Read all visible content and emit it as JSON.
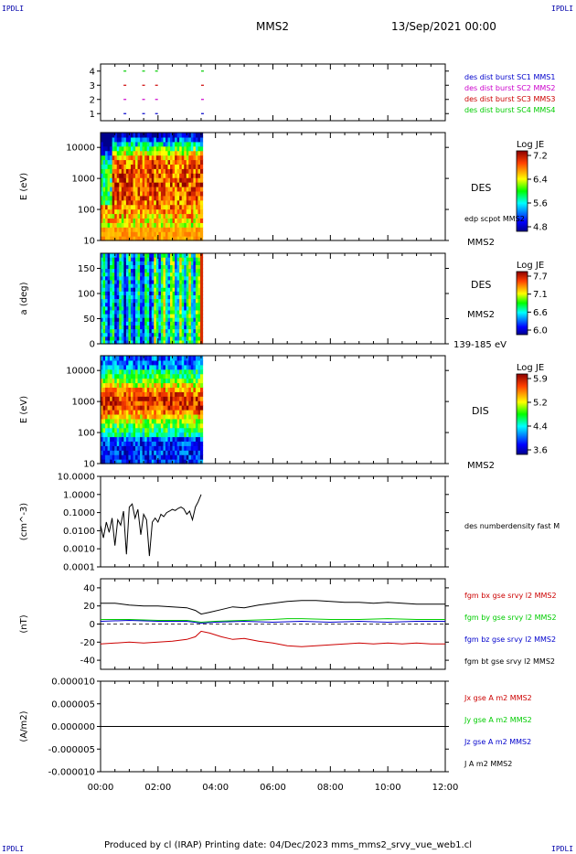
{
  "header": {
    "corner_label": "IPDLI",
    "spacecraft": "MMS2",
    "datetime": "13/Sep/2021 00:00"
  },
  "footer": {
    "text": "Produced by cl (IRAP)   Printing date: 04/Dec/2023   mms_mms2_srvy_vue_web1.cl"
  },
  "colors": {
    "blue": "#0000cc",
    "magenta": "#cc00cc",
    "red": "#cc0000",
    "green": "#00cc00",
    "black": "#000000"
  },
  "chart_data": [
    {
      "type": "scatter",
      "name": "burst-availability",
      "y_ticks": [
        "4",
        "3",
        "2",
        "1"
      ],
      "ylim": [
        0.5,
        4.5
      ],
      "legend": [
        {
          "label": "des dist burst SC1 MMS1",
          "color": "#0000cc"
        },
        {
          "label": "des dist burst SC2 MMS2",
          "color": "#cc00cc"
        },
        {
          "label": "des dist burst SC3 MMS3",
          "color": "#cc0000"
        },
        {
          "label": "des dist burst SC4 MMS4",
          "color": "#00cc00"
        }
      ],
      "burst_times_hours": [
        0.8,
        1.45,
        1.9,
        3.5
      ]
    },
    {
      "type": "heatmap",
      "name": "des-energy-spectrogram",
      "ylabel": "E (eV)",
      "y_scale": "log",
      "ylim": [
        10,
        30000
      ],
      "y_ticks": [
        "10000",
        "1000",
        "100",
        "10"
      ],
      "data_end_hours": 3.55,
      "right_labels": [
        "DES",
        "edp scpot MMS2",
        "MMS2"
      ],
      "colorbar": {
        "title": "Log JE",
        "ticks": [
          "7.2",
          "6.4",
          "5.6",
          "4.8"
        ],
        "range": [
          4.8,
          7.2
        ]
      }
    },
    {
      "type": "heatmap",
      "name": "des-pitch-angle",
      "ylabel": "a (deg)",
      "ylim": [
        0,
        180
      ],
      "y_ticks": [
        "150",
        "100",
        "50",
        "0"
      ],
      "data_end_hours": 3.55,
      "right_labels": [
        "DES",
        "MMS2",
        "139-185 eV"
      ],
      "colorbar": {
        "title": "Log JE",
        "ticks": [
          "7.7",
          "7.1",
          "6.6",
          "6.0"
        ],
        "range": [
          6.0,
          7.7
        ]
      }
    },
    {
      "type": "heatmap",
      "name": "dis-energy-spectrogram",
      "ylabel": "E (eV)",
      "y_scale": "log",
      "ylim": [
        10,
        30000
      ],
      "y_ticks": [
        "10000",
        "1000",
        "100",
        "10"
      ],
      "data_end_hours": 3.55,
      "right_labels": [
        "DIS",
        "MMS2"
      ],
      "colorbar": {
        "title": "Log JE",
        "ticks": [
          "5.9",
          "5.2",
          "4.4",
          "3.6"
        ],
        "range": [
          3.6,
          5.9
        ]
      }
    },
    {
      "type": "line",
      "name": "des-numberdensity",
      "ylabel": "(cm^-3)",
      "y_scale": "log",
      "ylim": [
        0.0001,
        10
      ],
      "y_ticks": [
        "10.0000",
        "1.0000",
        "0.1000",
        "0.0100",
        "0.0010",
        "0.0001"
      ],
      "series": [
        {
          "name": "des numberdensity fast M",
          "color": "#000000",
          "x": [
            0.0,
            0.1,
            0.2,
            0.3,
            0.4,
            0.5,
            0.6,
            0.7,
            0.8,
            0.9,
            1.0,
            1.1,
            1.2,
            1.3,
            1.4,
            1.5,
            1.6,
            1.7,
            1.8,
            1.9,
            2.0,
            2.1,
            2.2,
            2.3,
            2.4,
            2.5,
            2.6,
            2.7,
            2.8,
            2.9,
            3.0,
            3.1,
            3.2,
            3.3,
            3.4,
            3.5
          ],
          "y": [
            0.02,
            0.004,
            0.03,
            0.008,
            0.05,
            0.0015,
            0.04,
            0.02,
            0.12,
            0.0005,
            0.2,
            0.3,
            0.05,
            0.15,
            0.006,
            0.08,
            0.04,
            0.0004,
            0.03,
            0.05,
            0.03,
            0.08,
            0.06,
            0.1,
            0.12,
            0.15,
            0.13,
            0.17,
            0.2,
            0.16,
            0.08,
            0.12,
            0.04,
            0.2,
            0.4,
            1.0
          ]
        }
      ]
    },
    {
      "type": "line",
      "name": "fgm-magnetic-field",
      "ylabel": "(nT)",
      "ylim": [
        -50,
        50
      ],
      "y_ticks": [
        "40",
        "20",
        "0",
        "-20",
        "-40"
      ],
      "series": [
        {
          "name": "fgm bx gse srvy l2 MMS2",
          "color": "#cc0000",
          "x": [
            0,
            0.5,
            1,
            1.5,
            2,
            2.5,
            3,
            3.3,
            3.5,
            3.8,
            4.2,
            4.6,
            5.0,
            5.5,
            6,
            6.5,
            7,
            7.5,
            8,
            8.5,
            9,
            9.5,
            10,
            10.5,
            11,
            11.5,
            12
          ],
          "y": [
            -22,
            -21,
            -20,
            -21,
            -20,
            -19,
            -17,
            -14,
            -8,
            -10,
            -14,
            -17,
            -16,
            -19,
            -21,
            -24,
            -25,
            -24,
            -23,
            -22,
            -21,
            -22,
            -21,
            -22,
            -21,
            -22,
            -22
          ]
        },
        {
          "name": "fgm by gse srvy l2 MMS2",
          "color": "#00cc00",
          "x": [
            0,
            1,
            2,
            3,
            3.5,
            4,
            5,
            6,
            6.5,
            7,
            8,
            9,
            10,
            11,
            12
          ],
          "y": [
            5,
            5,
            4,
            4,
            2,
            3,
            4,
            5,
            6,
            6,
            5,
            5,
            6,
            5,
            5
          ]
        },
        {
          "name": "fgm bz gse srvy l2 MMS2",
          "color": "#0000cc",
          "x": [
            0,
            1,
            2,
            3,
            3.5,
            4,
            5,
            6,
            7,
            8,
            9,
            10,
            11,
            12
          ],
          "y": [
            3,
            4,
            3,
            3,
            1,
            2,
            3,
            2,
            3,
            2,
            3,
            2,
            3,
            3
          ]
        },
        {
          "name": "fgm bt gse srvy l2 MMS2",
          "color": "#000000",
          "x": [
            0,
            0.5,
            1,
            1.5,
            2,
            2.5,
            3,
            3.3,
            3.5,
            3.8,
            4.2,
            4.6,
            5.0,
            5.5,
            6,
            6.5,
            7,
            7.5,
            8,
            8.5,
            9,
            9.5,
            10,
            10.5,
            11,
            11.5,
            12
          ],
          "y": [
            23,
            23,
            21,
            20,
            20,
            19,
            18,
            15,
            11,
            13,
            16,
            19,
            18,
            21,
            23,
            25,
            26,
            26,
            25,
            24,
            24,
            23,
            24,
            23,
            22,
            22,
            22
          ]
        }
      ]
    },
    {
      "type": "line",
      "name": "current-density",
      "ylabel": "(A/m2)",
      "ylim": [
        -1e-05,
        1e-05
      ],
      "y_ticks": [
        "0.000010",
        "0.000005",
        "0.000000",
        "-0.000005",
        "-0.000010"
      ],
      "series": [
        {
          "name": "Jx gse A m2 MMS2",
          "color": "#cc0000",
          "x": [
            0,
            12
          ],
          "y": [
            0,
            0
          ]
        },
        {
          "name": "Jy gse A m2 MMS2",
          "color": "#00cc00",
          "x": [
            0,
            12
          ],
          "y": [
            0,
            0
          ]
        },
        {
          "name": "Jz gse A m2 MMS2",
          "color": "#0000cc",
          "x": [
            0,
            12
          ],
          "y": [
            0,
            0
          ]
        },
        {
          "name": "J A m2 MMS2",
          "color": "#000000",
          "x": [
            0,
            12
          ],
          "y": [
            0,
            0
          ]
        }
      ],
      "xlim": [
        0,
        12
      ],
      "x_ticks": [
        "00:00",
        "02:00",
        "04:00",
        "06:00",
        "08:00",
        "10:00",
        "12:00"
      ]
    }
  ]
}
